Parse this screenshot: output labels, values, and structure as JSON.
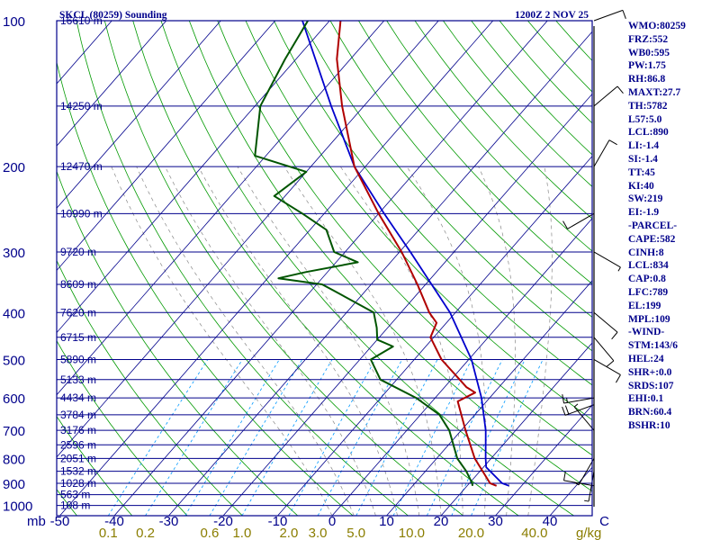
{
  "header": {
    "title": "SKCL (80259) Sounding",
    "time": "1200Z  2 NOV 25"
  },
  "colors": {
    "frame": "#00008b",
    "isobar": "#00008b",
    "isotherm": "#00008b",
    "dry_adiabat": "#009900",
    "moist_adiabat": "#888888",
    "mixing_ratio": "#0099ff",
    "temperature": "#b00000",
    "dewpoint": "#005500",
    "parcel": "#0000cc",
    "label_text": "#00008b",
    "mixing_text": "#8a7d00",
    "wind": "#000000"
  },
  "indices": [
    "WMO:80259",
    "FRZ:552",
    "WB0:595",
    "PW:1.75",
    "RH:86.8",
    "MAXT:27.7",
    "TH:5782",
    "L57:5.0",
    "LCL:890",
    "LI:-1.4",
    "SI:-1.4",
    "TT:45",
    "KI:40",
    "SW:219",
    "EI:-1.9",
    "-PARCEL-",
    "CAPE:582",
    "CINH:8",
    "LCL:834",
    "CAP:0.8",
    "LFC:789",
    "EL:199",
    "MPL:109",
    "-WIND-",
    "STM:143/6",
    "HEL:24",
    "SHR+:0.0",
    "SRDS:107",
    "EHI:0.1",
    "BRN:60.4",
    "BSHR:10"
  ],
  "chart_data": {
    "type": "skew-t",
    "x_axis_label": "mb",
    "mixing_ratio_unit": "g/kg",
    "pressure_ticks": [
      {
        "p": 100,
        "label": "100"
      },
      {
        "p": 200,
        "label": "200"
      },
      {
        "p": 300,
        "label": "300"
      },
      {
        "p": 400,
        "label": "400"
      },
      {
        "p": 500,
        "label": "500"
      },
      {
        "p": 600,
        "label": "600"
      },
      {
        "p": 700,
        "label": "700"
      },
      {
        "p": 800,
        "label": "800"
      },
      {
        "p": 900,
        "label": "900"
      },
      {
        "p": 1000,
        "label": "1000"
      }
    ],
    "isobar_levels": [
      100,
      150,
      200,
      250,
      300,
      350,
      400,
      450,
      500,
      550,
      600,
      650,
      700,
      750,
      800,
      850,
      900,
      950,
      1000
    ],
    "heights": [
      {
        "p": 100,
        "label": "16610 m"
      },
      {
        "p": 150,
        "label": "14250 m"
      },
      {
        "p": 200,
        "label": "12470 m"
      },
      {
        "p": 250,
        "label": "10990 m"
      },
      {
        "p": 300,
        "label": "9720 m"
      },
      {
        "p": 350,
        "label": "8609 m"
      },
      {
        "p": 400,
        "label": "7620 m"
      },
      {
        "p": 450,
        "label": "6715 m"
      },
      {
        "p": 500,
        "label": "5890 m"
      },
      {
        "p": 550,
        "label": "5133 m"
      },
      {
        "p": 600,
        "label": "4434 m"
      },
      {
        "p": 650,
        "label": "3784 m"
      },
      {
        "p": 700,
        "label": "3176 m"
      },
      {
        "p": 750,
        "label": "2596 m"
      },
      {
        "p": 800,
        "label": "2051 m"
      },
      {
        "p": 850,
        "label": "1532 m"
      },
      {
        "p": 900,
        "label": "1028 m"
      },
      {
        "p": 950,
        "label": "563 m"
      },
      {
        "p": 1000,
        "label": "108 m"
      }
    ],
    "temperature_ticks": [
      {
        "t": -50,
        "label": "-50"
      },
      {
        "t": -40,
        "label": "-40"
      },
      {
        "t": -30,
        "label": "-30"
      },
      {
        "t": -20,
        "label": "-20"
      },
      {
        "t": -10,
        "label": "-10"
      },
      {
        "t": 0,
        "label": "0"
      },
      {
        "t": 10,
        "label": "10"
      },
      {
        "t": 20,
        "label": "20"
      },
      {
        "t": 30,
        "label": "30"
      },
      {
        "t": 40,
        "label": "40"
      },
      {
        "t": 50,
        "label": "C"
      }
    ],
    "mixing_ratio_labels": [
      {
        "w": 0.1,
        "label": "0.1"
      },
      {
        "w": 0.2,
        "label": "0.2"
      },
      {
        "w": 0.6,
        "label": "0.6"
      },
      {
        "w": 1.0,
        "label": "1.0"
      },
      {
        "w": 2.0,
        "label": "2.0"
      },
      {
        "w": 3.0,
        "label": "3.0"
      },
      {
        "w": 5.0,
        "label": "5.0"
      },
      {
        "w": 10.0,
        "label": "10.0"
      },
      {
        "w": 20.0,
        "label": "20.0"
      },
      {
        "w": 40.0,
        "label": "40.0"
      }
    ],
    "mixing_ratio_lines": [
      0.1,
      0.2,
      0.4,
      0.6,
      1,
      2,
      3,
      5,
      8,
      12,
      16,
      20
    ],
    "dry_adiabats_c": [
      -60,
      -50,
      -40,
      -30,
      -20,
      -10,
      0,
      10,
      20,
      30,
      40,
      50,
      60,
      70,
      80,
      90,
      100,
      110,
      120,
      130,
      140,
      150,
      160,
      170,
      180
    ],
    "moist_adiabats_c": [
      0,
      4,
      8,
      12,
      16,
      20,
      24,
      28,
      32,
      36
    ],
    "temperature": [
      {
        "p": 911,
        "t": 25.4
      },
      {
        "p": 900,
        "t": 23.8
      },
      {
        "p": 850,
        "t": 20.5
      },
      {
        "p": 800,
        "t": 17.0
      },
      {
        "p": 700,
        "t": 10.8
      },
      {
        "p": 610,
        "t": 4.7
      },
      {
        "p": 585,
        "t": 6.5
      },
      {
        "p": 570,
        "t": 4.0
      },
      {
        "p": 500,
        "t": -5.0
      },
      {
        "p": 450,
        "t": -10.6
      },
      {
        "p": 420,
        "t": -11.8
      },
      {
        "p": 400,
        "t": -14.8
      },
      {
        "p": 350,
        "t": -21.5
      },
      {
        "p": 300,
        "t": -29.6
      },
      {
        "p": 250,
        "t": -40.0
      },
      {
        "p": 200,
        "t": -52.0
      },
      {
        "p": 150,
        "t": -64.0
      },
      {
        "p": 120,
        "t": -72.5
      },
      {
        "p": 100,
        "t": -78.0
      }
    ],
    "dewpoint": [
      {
        "p": 911,
        "t": 21.0
      },
      {
        "p": 900,
        "t": 20.5
      },
      {
        "p": 850,
        "t": 17.5
      },
      {
        "p": 800,
        "t": 13.8
      },
      {
        "p": 700,
        "t": 7.8
      },
      {
        "p": 650,
        "t": 3.5
      },
      {
        "p": 600,
        "t": -3.5
      },
      {
        "p": 550,
        "t": -13.0
      },
      {
        "p": 500,
        "t": -18.0
      },
      {
        "p": 470,
        "t": -16.0
      },
      {
        "p": 455,
        "t": -20.0
      },
      {
        "p": 430,
        "t": -22.0
      },
      {
        "p": 400,
        "t": -25.0
      },
      {
        "p": 360,
        "t": -36.0
      },
      {
        "p": 350,
        "t": -39.0
      },
      {
        "p": 340,
        "t": -48.0
      },
      {
        "p": 330,
        "t": -44.0
      },
      {
        "p": 315,
        "t": -36.0
      },
      {
        "p": 300,
        "t": -42.0
      },
      {
        "p": 270,
        "t": -47.0
      },
      {
        "p": 250,
        "t": -54.0
      },
      {
        "p": 230,
        "t": -62.0
      },
      {
        "p": 205,
        "t": -60.0
      },
      {
        "p": 190,
        "t": -72.0
      },
      {
        "p": 150,
        "t": -79.0
      },
      {
        "p": 120,
        "t": -82.0
      },
      {
        "p": 100,
        "t": -84.0
      }
    ],
    "parcel": [
      {
        "p": 911,
        "t": 27.7
      },
      {
        "p": 900,
        "t": 26.0
      },
      {
        "p": 834,
        "t": 20.5
      },
      {
        "p": 800,
        "t": 19.0
      },
      {
        "p": 700,
        "t": 14.5
      },
      {
        "p": 600,
        "t": 8.5
      },
      {
        "p": 500,
        "t": 0.5
      },
      {
        "p": 400,
        "t": -11.0
      },
      {
        "p": 300,
        "t": -28.0
      },
      {
        "p": 250,
        "t": -39.0
      },
      {
        "p": 200,
        "t": -52.0
      },
      {
        "p": 150,
        "t": -66.0
      },
      {
        "p": 100,
        "t": -85.0
      }
    ],
    "winds": [
      {
        "p": 911,
        "dir": 280,
        "spd": 10
      },
      {
        "p": 850,
        "dir": 190,
        "spd": 5
      },
      {
        "p": 800,
        "dir": 210,
        "spd": 5
      },
      {
        "p": 700,
        "dir": 320,
        "spd": 5
      },
      {
        "p": 620,
        "dir": 250,
        "spd": 20
      },
      {
        "p": 600,
        "dir": 260,
        "spd": 15
      },
      {
        "p": 500,
        "dir": 120,
        "spd": 10
      },
      {
        "p": 450,
        "dir": 140,
        "spd": 10
      },
      {
        "p": 400,
        "dir": 130,
        "spd": 10
      },
      {
        "p": 300,
        "dir": 120,
        "spd": 5
      },
      {
        "p": 250,
        "dir": 240,
        "spd": 10
      },
      {
        "p": 200,
        "dir": 30,
        "spd": 10
      },
      {
        "p": 150,
        "dir": 50,
        "spd": 10
      },
      {
        "p": 100,
        "dir": 70,
        "spd": 10
      }
    ]
  }
}
